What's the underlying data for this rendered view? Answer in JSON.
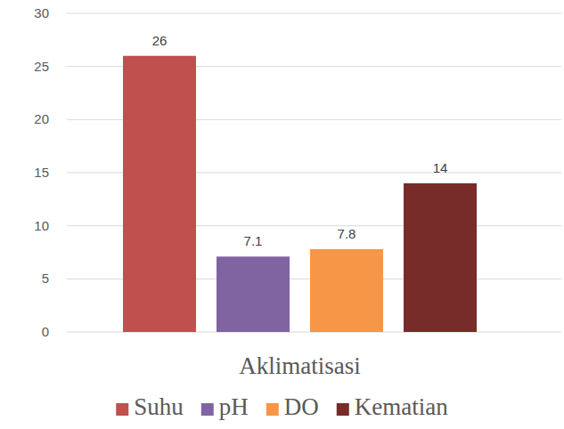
{
  "chart_data": {
    "type": "bar",
    "categories": [
      "Aklimatisasi"
    ],
    "series": [
      {
        "name": "Suhu",
        "color": "#c0504d",
        "values": [
          26
        ]
      },
      {
        "name": "pH",
        "color": "#8064a2",
        "values": [
          7.1
        ]
      },
      {
        "name": "DO",
        "color": "#f79646",
        "values": [
          7.8
        ]
      },
      {
        "name": "Kematian",
        "color": "#772c2a",
        "values": [
          14
        ]
      }
    ],
    "ylim": [
      0,
      30
    ],
    "yticks": [
      0,
      5,
      10,
      15,
      20,
      25,
      30
    ],
    "grid": true,
    "data_labels": true,
    "legend": "bottom"
  }
}
